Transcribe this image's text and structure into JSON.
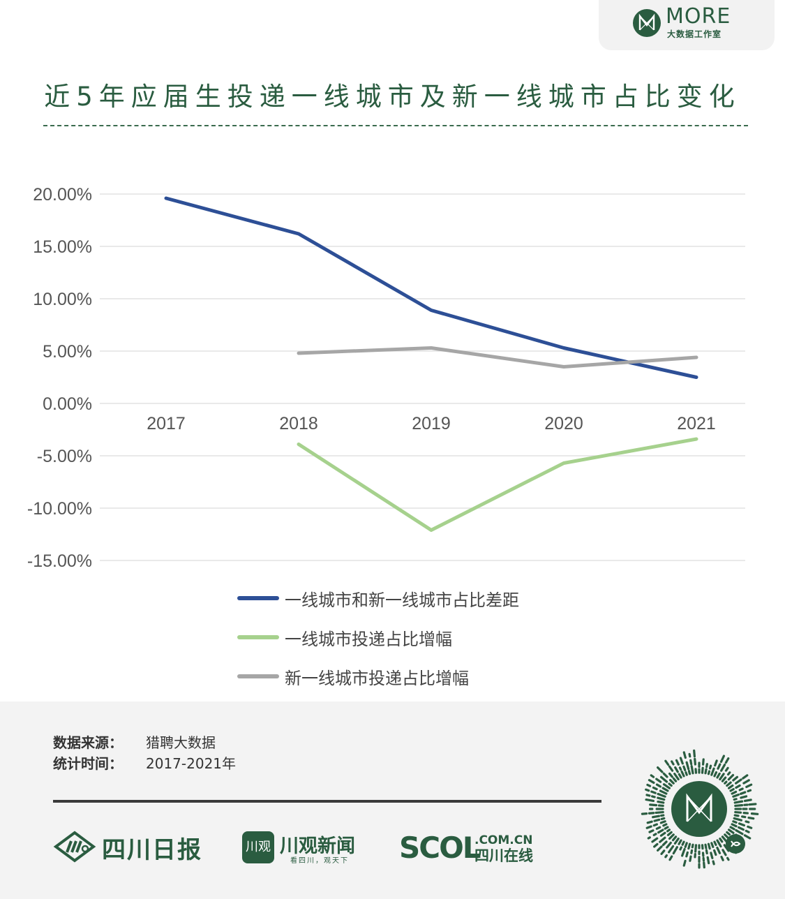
{
  "brand": {
    "name": "MORE",
    "sub": "大数据工作室"
  },
  "title": "近5年应届生投递一线城市及新一线城市占比变化",
  "chart_data": {
    "type": "line",
    "x": [
      "2017",
      "2018",
      "2019",
      "2020",
      "2021"
    ],
    "ylim": [
      -15,
      20
    ],
    "yticks": [
      "20.00%",
      "15.00%",
      "10.00%",
      "5.00%",
      "0.00%",
      "-5.00%",
      "-10.00%",
      "-15.00%"
    ],
    "ytick_values": [
      20,
      15,
      10,
      5,
      0,
      -5,
      -10,
      -15
    ],
    "grid": true,
    "legend_position": "bottom",
    "series": [
      {
        "name": "一线城市和新一线城市占比差距",
        "color": "#2d4f96",
        "values": [
          19.6,
          16.2,
          8.9,
          5.3,
          2.5
        ]
      },
      {
        "name": "一线城市投递占比增幅",
        "color": "#a6d18d",
        "values": [
          null,
          -3.9,
          -12.1,
          -5.7,
          -3.4
        ]
      },
      {
        "name": "新一线城市投递占比增幅",
        "color": "#a6a6a6",
        "values": [
          null,
          4.8,
          5.3,
          3.5,
          4.4
        ]
      }
    ]
  },
  "footer": {
    "source_label": "数据来源：",
    "source_value": "猎聘大数据",
    "period_label": "统计时间：",
    "period_value": "2017-2021年",
    "logo_sichuan_daily": "四川日报",
    "logo_chuanguan": "川观新闻",
    "logo_chuanguan_badge": "川观",
    "logo_chuanguan_slogan": "看四川，观天下",
    "logo_scol": "SCOL",
    "logo_scol_domain": ".COM.CN",
    "logo_scol_cn": "四川在线"
  }
}
